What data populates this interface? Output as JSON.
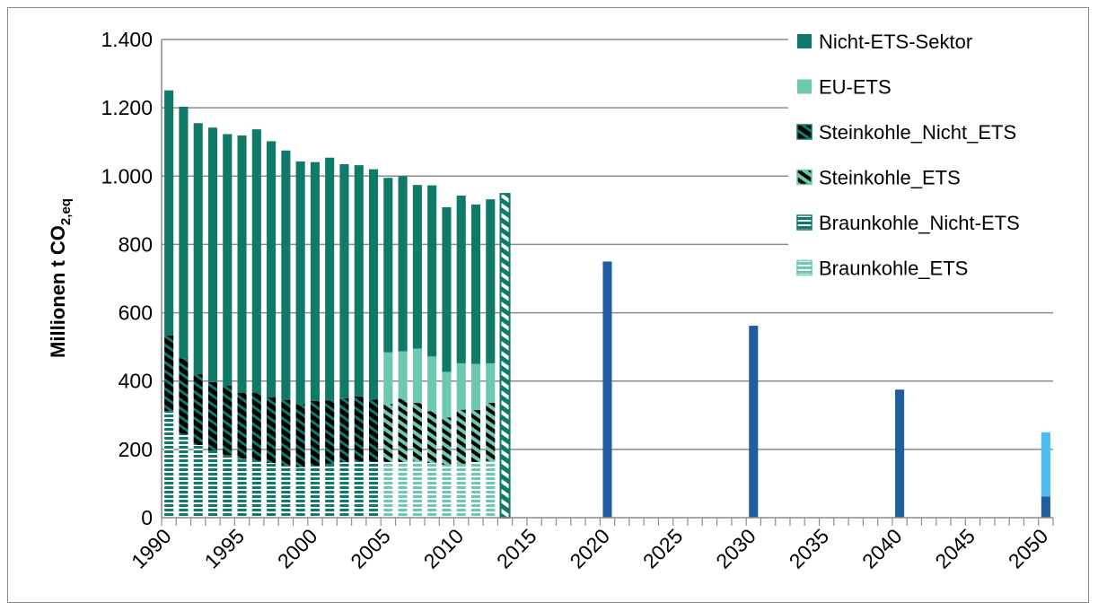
{
  "chart_data": {
    "type": "bar",
    "stacked": true,
    "ylabel": {
      "text": "Millionen t CO",
      "subscript": "2,eq"
    },
    "ylim": [
      0,
      1400
    ],
    "yticks": [
      0,
      200,
      400,
      600,
      800,
      1000,
      1200,
      1400
    ],
    "ytick_labels": [
      "0",
      "200",
      "400",
      "600",
      "800",
      "1.000",
      "1.200",
      "1.400"
    ],
    "xlim": [
      1990,
      2050
    ],
    "xticks": [
      1990,
      1995,
      2000,
      2005,
      2010,
      2015,
      2020,
      2025,
      2030,
      2035,
      2040,
      2045,
      2050
    ],
    "xtick_labels": [
      "1990",
      "1995",
      "2000",
      "2005",
      "2010",
      "2015",
      "2020",
      "2025",
      "2030",
      "2035",
      "2040",
      "2045",
      "2050"
    ],
    "grid": true,
    "legend_position": "top-right",
    "legend": [
      {
        "label": "Nicht-ETS-Sektor",
        "color": "#0f7a6a",
        "pattern": "solid"
      },
      {
        "label": "EU-ETS",
        "color": "#6cc8b1",
        "pattern": "solid"
      },
      {
        "label": "Steinkohle_Nicht_ETS",
        "color": "#0f7a6a",
        "pattern": "black-diagonal"
      },
      {
        "label": "Steinkohle_ETS",
        "color": "#6cc8b1",
        "pattern": "black-diagonal"
      },
      {
        "label": "Braunkohle_Nicht-ETS",
        "color": "#0f7a6a",
        "pattern": "horizontal"
      },
      {
        "label": "Braunkohle_ETS",
        "color": "#6cc8b1",
        "pattern": "horizontal"
      }
    ],
    "history": [
      {
        "year": 1990,
        "total": 1251,
        "lignite": 312,
        "hardcoal": 222,
        "ets": 0
      },
      {
        "year": 1991,
        "total": 1203,
        "lignite": 245,
        "hardcoal": 222,
        "ets": 0
      },
      {
        "year": 1992,
        "total": 1155,
        "lignite": 213,
        "hardcoal": 207,
        "ets": 0
      },
      {
        "year": 1993,
        "total": 1142,
        "lignite": 197,
        "hardcoal": 200,
        "ets": 0
      },
      {
        "year": 1994,
        "total": 1123,
        "lignite": 183,
        "hardcoal": 203,
        "ets": 0
      },
      {
        "year": 1995,
        "total": 1119,
        "lignite": 172,
        "hardcoal": 193,
        "ets": 0
      },
      {
        "year": 1996,
        "total": 1137,
        "lignite": 167,
        "hardcoal": 198,
        "ets": 0
      },
      {
        "year": 1997,
        "total": 1102,
        "lignite": 160,
        "hardcoal": 192,
        "ets": 0
      },
      {
        "year": 1998,
        "total": 1075,
        "lignite": 153,
        "hardcoal": 192,
        "ets": 0
      },
      {
        "year": 1999,
        "total": 1043,
        "lignite": 148,
        "hardcoal": 184,
        "ets": 0
      },
      {
        "year": 2000,
        "total": 1041,
        "lignite": 152,
        "hardcoal": 190,
        "ets": 0
      },
      {
        "year": 2001,
        "total": 1054,
        "lignite": 158,
        "hardcoal": 185,
        "ets": 0
      },
      {
        "year": 2002,
        "total": 1035,
        "lignite": 162,
        "hardcoal": 188,
        "ets": 0
      },
      {
        "year": 2003,
        "total": 1032,
        "lignite": 165,
        "hardcoal": 190,
        "ets": 0
      },
      {
        "year": 2004,
        "total": 1020,
        "lignite": 164,
        "hardcoal": 182,
        "ets": 0
      },
      {
        "year": 2005,
        "total": 995,
        "lignite": 163,
        "hardcoal": 170,
        "ets": 484
      },
      {
        "year": 2006,
        "total": 1000,
        "lignite": 163,
        "hardcoal": 185,
        "ets": 487
      },
      {
        "year": 2007,
        "total": 974,
        "lignite": 166,
        "hardcoal": 170,
        "ets": 495
      },
      {
        "year": 2008,
        "total": 973,
        "lignite": 160,
        "hardcoal": 152,
        "ets": 472
      },
      {
        "year": 2009,
        "total": 909,
        "lignite": 155,
        "hardcoal": 138,
        "ets": 427
      },
      {
        "year": 2010,
        "total": 943,
        "lignite": 158,
        "hardcoal": 158,
        "ets": 452
      },
      {
        "year": 2011,
        "total": 917,
        "lignite": 163,
        "hardcoal": 152,
        "ets": 450
      },
      {
        "year": 2012,
        "total": 932,
        "lignite": 166,
        "hardcoal": 170,
        "ets": 452
      }
    ],
    "year_2013": {
      "year": 2013,
      "total": 948
    },
    "targets": [
      {
        "year": 2020,
        "value": 750,
        "color": "#1f5fa0"
      },
      {
        "year": 2030,
        "value": 562,
        "color": "#1f5fa0"
      },
      {
        "year": 2040,
        "value": 375,
        "color": "#1f5fa0"
      },
      {
        "year": 2050,
        "value": 62,
        "color": "#1f5fa0",
        "upper": 250,
        "upper_color": "#4bbcef"
      }
    ]
  }
}
